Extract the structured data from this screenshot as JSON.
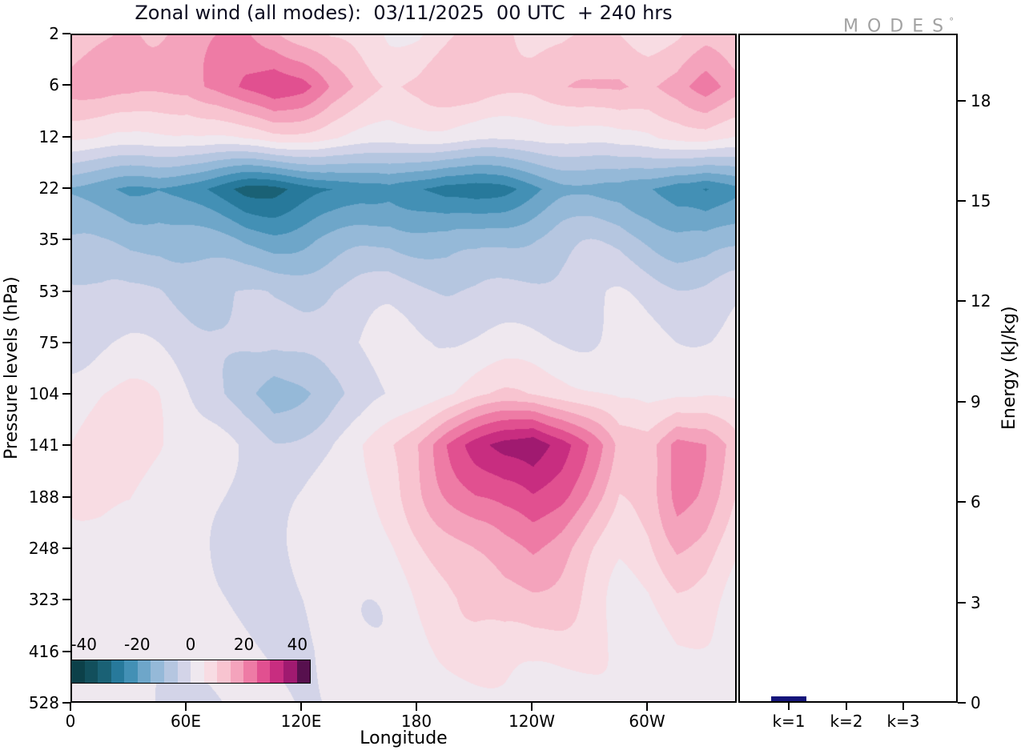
{
  "title": "Zonal wind (all modes):  03/11/2025  00 UTC  + 240 hrs",
  "logo": {
    "text": "MODES",
    "mark": "°"
  },
  "axes": {
    "y_label": "Pressure levels (hPa)",
    "x_label": "Longitude",
    "y_ticks": [
      "2",
      "6",
      "12",
      "22",
      "35",
      "53",
      "75",
      "104",
      "141",
      "188",
      "248",
      "323",
      "416",
      "528"
    ],
    "x_ticks": [
      "0",
      "60E",
      "120E",
      "180",
      "120W",
      "60W"
    ],
    "energy_label": "Energy (kJ/kg)",
    "energy_ticks": [
      "0",
      "3",
      "6",
      "9",
      "12",
      "15",
      "18"
    ],
    "energy_x_ticks": [
      "k=1",
      "k=2",
      "k=3"
    ]
  },
  "colorbar": {
    "tick_labels": [
      "-40",
      "-20",
      "0",
      "20",
      "40"
    ],
    "tick_values": [
      -40,
      -20,
      0,
      20,
      40
    ],
    "min": -45,
    "max": 45,
    "step": 5,
    "colors": [
      "#0c4049",
      "#124f5c",
      "#1a6175",
      "#27799b",
      "#4390b5",
      "#6ea6c9",
      "#95b9d8",
      "#b5c6e0",
      "#d3d4e8",
      "#efe8ef",
      "#f8dce3",
      "#f8c4d0",
      "#f4a3bc",
      "#ee7ba5",
      "#e15090",
      "#c82d80",
      "#a01a70",
      "#57104e"
    ]
  },
  "chart_data": [
    {
      "type": "heatmap",
      "title": "Zonal wind (all modes): 03/11/2025 00 UTC + 240 hrs",
      "xlabel": "Longitude",
      "ylabel": "Pressure levels (hPa)",
      "legend": "filled contours, levels every 5 units from -45 to 45",
      "x_deg": [
        0,
        15,
        30,
        45,
        60,
        75,
        90,
        105,
        120,
        135,
        150,
        165,
        180,
        195,
        210,
        225,
        240,
        255,
        270,
        285,
        300,
        315,
        330,
        345
      ],
      "y_hpa": [
        2,
        6,
        12,
        22,
        35,
        53,
        75,
        104,
        141,
        188,
        248,
        323,
        416,
        528
      ],
      "values": [
        [
          10,
          12,
          14,
          15,
          16,
          18,
          20,
          18,
          14,
          10,
          8,
          6,
          6,
          8,
          10,
          10,
          9,
          8,
          9,
          10,
          10,
          11,
          13,
          11
        ],
        [
          15,
          17,
          18,
          17,
          16,
          20,
          26,
          30,
          26,
          18,
          14,
          10,
          10,
          12,
          14,
          13,
          12,
          13,
          14,
          16,
          14,
          16,
          22,
          18
        ],
        [
          5,
          6,
          6,
          5,
          4,
          5,
          7,
          8,
          6,
          4,
          3,
          2,
          2,
          3,
          3,
          3,
          2,
          2,
          3,
          4,
          3,
          4,
          6,
          5
        ],
        [
          -16,
          -18,
          -20,
          -20,
          -24,
          -27,
          -30,
          -30,
          -28,
          -26,
          -22,
          -20,
          -24,
          -28,
          -28,
          -26,
          -22,
          -18,
          -16,
          -15,
          -18,
          -24,
          -26,
          -20
        ],
        [
          -10,
          -12,
          -13,
          -12,
          -13,
          -15,
          -17,
          -17,
          -15,
          -13,
          -11,
          -10,
          -12,
          -14,
          -14,
          -12,
          -10,
          -8,
          -7,
          -7,
          -9,
          -12,
          -13,
          -11
        ],
        [
          -4,
          -5,
          -5,
          -4,
          -5,
          -6,
          -7,
          -7,
          -6,
          -5,
          -4,
          -3,
          -4,
          -5,
          -5,
          -4,
          -3,
          -2,
          -2,
          -2,
          -3,
          -4,
          -4,
          -3
        ],
        [
          0,
          1,
          1,
          0,
          -1,
          -2,
          -4,
          -5,
          -4,
          -2,
          -1,
          0,
          1,
          2,
          2,
          2,
          2,
          2,
          1,
          1,
          0,
          0,
          0,
          0
        ],
        [
          4,
          5,
          5,
          4,
          1,
          -3,
          -9,
          -13,
          -9,
          -5,
          -3,
          0,
          3,
          6,
          8,
          9,
          9,
          8,
          6,
          4,
          4,
          6,
          6,
          4
        ],
        [
          5,
          7,
          8,
          6,
          3,
          0,
          -3,
          -4,
          -2,
          0,
          4,
          10,
          16,
          24,
          30,
          36,
          40,
          32,
          22,
          12,
          14,
          24,
          20,
          12
        ],
        [
          4,
          6,
          7,
          5,
          2,
          0,
          -2,
          -2,
          -1,
          1,
          3,
          8,
          13,
          19,
          25,
          29,
          31,
          26,
          18,
          10,
          12,
          20,
          17,
          10
        ],
        [
          3,
          5,
          6,
          4,
          2,
          0,
          -1,
          -1,
          0,
          1,
          2,
          5,
          9,
          13,
          17,
          20,
          21,
          17,
          12,
          8,
          9,
          14,
          12,
          7
        ],
        [
          2,
          3,
          4,
          3,
          1,
          0,
          0,
          0,
          0,
          1,
          2,
          3,
          6,
          8,
          11,
          13,
          13,
          11,
          8,
          5,
          6,
          9,
          8,
          5
        ],
        [
          1,
          2,
          3,
          2,
          1,
          0,
          0,
          0,
          0,
          0,
          1,
          2,
          3,
          5,
          6,
          7,
          7,
          6,
          4,
          3,
          3,
          5,
          4,
          3
        ],
        [
          1,
          1,
          2,
          1,
          0,
          0,
          0,
          0,
          0,
          0,
          0,
          1,
          2,
          2,
          3,
          4,
          4,
          3,
          2,
          1,
          1,
          2,
          2,
          1
        ]
      ]
    },
    {
      "type": "bar",
      "categories": [
        "k=1",
        "k=2",
        "k=3"
      ],
      "values": [
        0.15,
        0.02,
        0.01
      ],
      "ylabel": "Energy (kJ/kg)",
      "ylim": [
        0,
        20
      ],
      "bar_color": "#14147a"
    }
  ]
}
